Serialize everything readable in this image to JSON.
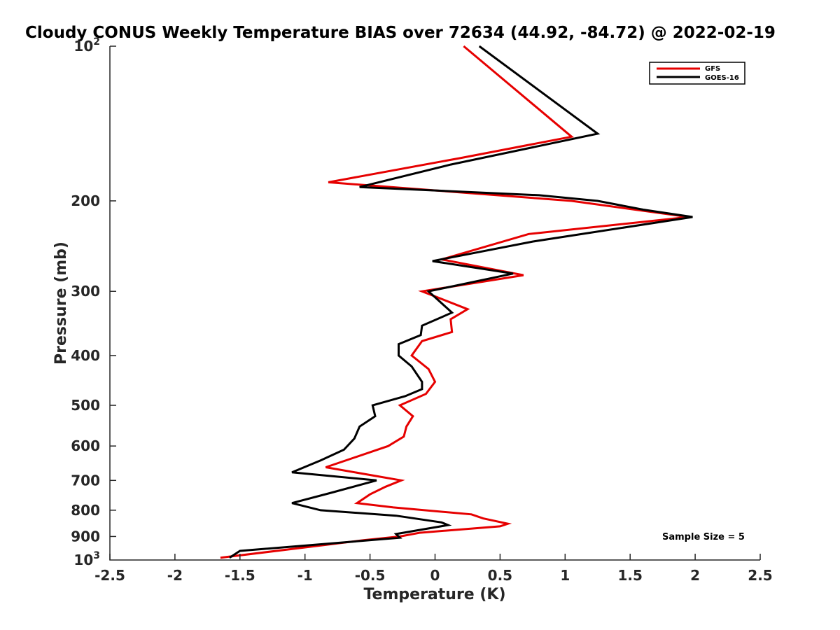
{
  "chart_data": {
    "type": "line",
    "title": "Cloudy CONUS Weekly Temperature BIAS over 72634 (44.92, -84.72) @ 2022-02-19",
    "xlabel": "Temperature (K)",
    "ylabel": "Pressure (mb)",
    "xlim": [
      -2.5,
      2.5
    ],
    "ylim": [
      100,
      1000
    ],
    "yscale": "log",
    "y_reversed": true,
    "grid": false,
    "legend_position": "top-right",
    "x_ticks": [
      {
        "value": -2.5,
        "label": "-2.5"
      },
      {
        "value": -2,
        "label": "-2"
      },
      {
        "value": -1.5,
        "label": "-1.5"
      },
      {
        "value": -1,
        "label": "-1"
      },
      {
        "value": -0.5,
        "label": "-0.5"
      },
      {
        "value": 0,
        "label": "0"
      },
      {
        "value": 0.5,
        "label": "0.5"
      },
      {
        "value": 1,
        "label": "1"
      },
      {
        "value": 1.5,
        "label": "1.5"
      },
      {
        "value": 2,
        "label": "2"
      },
      {
        "value": 2.5,
        "label": "2.5"
      }
    ],
    "y_ticks": [
      {
        "value": 100,
        "base": "10",
        "exp": "2"
      },
      {
        "value": 200,
        "base": "200",
        "exp": ""
      },
      {
        "value": 300,
        "base": "300",
        "exp": ""
      },
      {
        "value": 400,
        "base": "400",
        "exp": ""
      },
      {
        "value": 500,
        "base": "500",
        "exp": ""
      },
      {
        "value": 600,
        "base": "600",
        "exp": ""
      },
      {
        "value": 700,
        "base": "700",
        "exp": ""
      },
      {
        "value": 800,
        "base": "800",
        "exp": ""
      },
      {
        "value": 900,
        "base": "900",
        "exp": ""
      },
      {
        "value": 1000,
        "base": "10",
        "exp": "3"
      }
    ],
    "annotation": "Sample Size = 5",
    "series": [
      {
        "name": "GFS",
        "color": "#e60000",
        "points": [
          [
            0.22,
            100
          ],
          [
            1.05,
            150
          ],
          [
            0.2,
            165
          ],
          [
            -0.82,
            184
          ],
          [
            1.05,
            200
          ],
          [
            1.95,
            215
          ],
          [
            0.72,
            232
          ],
          [
            0.05,
            260
          ],
          [
            0.68,
            279
          ],
          [
            -0.1,
            300
          ],
          [
            0.25,
            325
          ],
          [
            0.12,
            340
          ],
          [
            0.13,
            360
          ],
          [
            -0.1,
            375
          ],
          [
            -0.18,
            400
          ],
          [
            -0.05,
            425
          ],
          [
            0.0,
            450
          ],
          [
            -0.07,
            475
          ],
          [
            -0.27,
            500
          ],
          [
            -0.17,
            525
          ],
          [
            -0.22,
            550
          ],
          [
            -0.24,
            575
          ],
          [
            -0.36,
            600
          ],
          [
            -0.84,
            660
          ],
          [
            -0.26,
            700
          ],
          [
            -0.38,
            720
          ],
          [
            -0.5,
            745
          ],
          [
            -0.6,
            775
          ],
          [
            -0.32,
            790
          ],
          [
            0.28,
            815
          ],
          [
            0.37,
            830
          ],
          [
            0.56,
            850
          ],
          [
            0.5,
            860
          ],
          [
            -0.12,
            885
          ],
          [
            -0.27,
            900
          ],
          [
            -0.55,
            915
          ],
          [
            -1.65,
            990
          ]
        ]
      },
      {
        "name": "GOES-16",
        "color": "#000000",
        "points": [
          [
            0.34,
            100
          ],
          [
            1.25,
            148
          ],
          [
            0.12,
            170
          ],
          [
            -0.58,
            188
          ],
          [
            0.8,
            195
          ],
          [
            1.25,
            200
          ],
          [
            1.6,
            208
          ],
          [
            1.98,
            215
          ],
          [
            0.75,
            240
          ],
          [
            -0.02,
            262
          ],
          [
            0.6,
            277
          ],
          [
            -0.05,
            300
          ],
          [
            0.13,
            330
          ],
          [
            -0.1,
            350
          ],
          [
            -0.11,
            365
          ],
          [
            -0.28,
            380
          ],
          [
            -0.28,
            400
          ],
          [
            -0.18,
            420
          ],
          [
            -0.1,
            450
          ],
          [
            -0.1,
            465
          ],
          [
            -0.23,
            480
          ],
          [
            -0.48,
            500
          ],
          [
            -0.46,
            525
          ],
          [
            -0.58,
            550
          ],
          [
            -0.62,
            580
          ],
          [
            -0.7,
            610
          ],
          [
            -0.88,
            640
          ],
          [
            -1.1,
            675
          ],
          [
            -0.45,
            700
          ],
          [
            -0.8,
            740
          ],
          [
            -1.1,
            775
          ],
          [
            -0.88,
            800
          ],
          [
            -0.3,
            820
          ],
          [
            0.05,
            845
          ],
          [
            0.1,
            855
          ],
          [
            -0.3,
            890
          ],
          [
            -0.27,
            905
          ],
          [
            -1.5,
            960
          ],
          [
            -1.58,
            990
          ]
        ]
      }
    ]
  }
}
